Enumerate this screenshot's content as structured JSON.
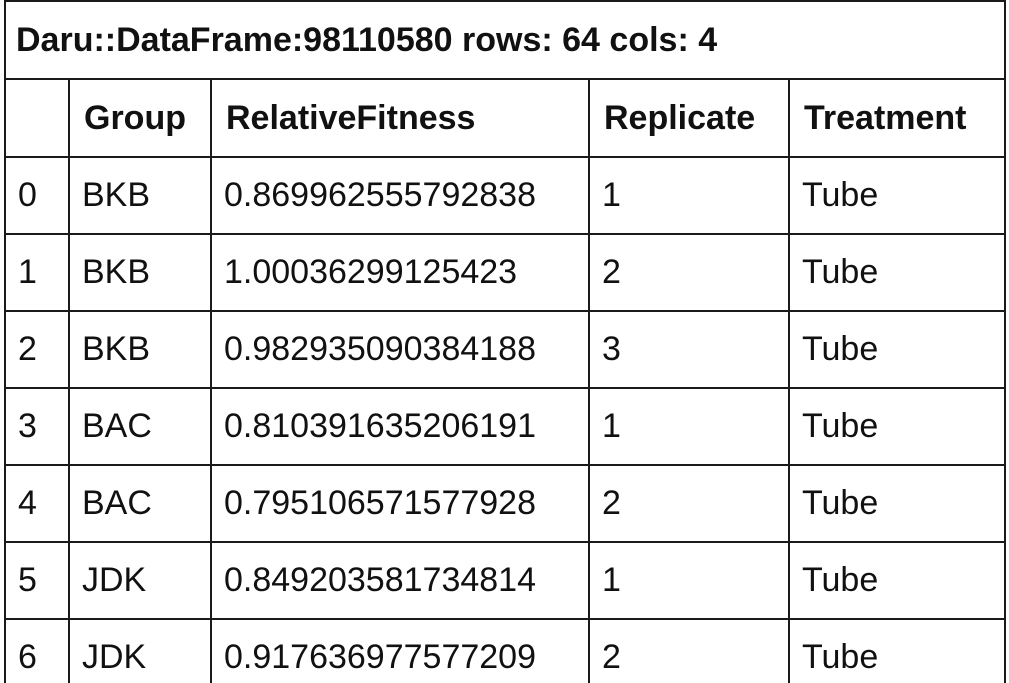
{
  "dataframe": {
    "caption": "Daru::DataFrame:98110580 rows: 64 cols: 4",
    "columns": [
      "",
      "Group",
      "RelativeFitness",
      "Replicate",
      "Treatment"
    ],
    "rows": [
      [
        "0",
        "BKB",
        "0.869962555792838",
        "1",
        "Tube"
      ],
      [
        "1",
        "BKB",
        "1.00036299125423",
        "2",
        "Tube"
      ],
      [
        "2",
        "BKB",
        "0.982935090384188",
        "3",
        "Tube"
      ],
      [
        "3",
        "BAC",
        "0.810391635206191",
        "1",
        "Tube"
      ],
      [
        "4",
        "BAC",
        "0.795106571577928",
        "2",
        "Tube"
      ],
      [
        "5",
        "JDK",
        "0.849203581734814",
        "1",
        "Tube"
      ],
      [
        "6",
        "JDK",
        "0.917636977577209",
        "2",
        "Tube"
      ]
    ]
  }
}
